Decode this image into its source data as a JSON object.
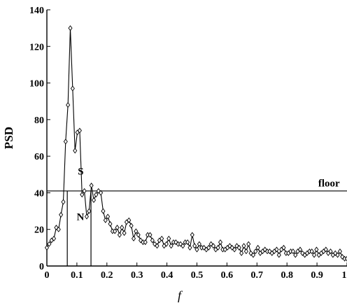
{
  "chart_data": {
    "type": "line",
    "xlabel": "f",
    "ylabel": "PSD",
    "xlim": [
      0,
      1
    ],
    "ylim": [
      0,
      140
    ],
    "xticks": [
      0,
      0.1,
      0.2,
      0.3,
      0.4,
      0.5,
      0.6,
      0.7,
      0.8,
      0.9,
      1
    ],
    "xtick_labels": [
      "0",
      "0.1",
      "0.2",
      "0.3",
      "0.4",
      "0.5",
      "0.6",
      "0.7",
      "0.8",
      "0.9",
      "1"
    ],
    "yticks": [
      0,
      20,
      40,
      60,
      80,
      100,
      120,
      140
    ],
    "ytick_labels": [
      "0",
      "20",
      "40",
      "60",
      "80",
      "100",
      "120",
      "140"
    ],
    "marker": "diamond",
    "grid": false,
    "floor_value": 41,
    "vertical_lines": [
      0.068,
      0.147
    ],
    "annotations": [
      {
        "text": "S",
        "x": 0.113,
        "y": 50
      },
      {
        "text": "N",
        "x": 0.112,
        "y": 25
      },
      {
        "text": "floor",
        "x": 0.94,
        "y": 43.5
      }
    ],
    "series": [
      {
        "x": [
          0.0,
          0.0078,
          0.0156,
          0.0234,
          0.0313,
          0.0391,
          0.0469,
          0.0547,
          0.0625,
          0.0703,
          0.0781,
          0.0859,
          0.0938,
          0.1016,
          0.1094,
          0.1172,
          0.125,
          0.1328,
          0.1406,
          0.1484,
          0.1563,
          0.1641,
          0.1719,
          0.1797,
          0.1875,
          0.1953,
          0.2031,
          0.2109,
          0.2188,
          0.2266,
          0.2344,
          0.2422,
          0.25,
          0.2578,
          0.2656,
          0.2734,
          0.2813,
          0.2891,
          0.2969,
          0.3047,
          0.3125,
          0.3203,
          0.3281,
          0.3359,
          0.3438,
          0.3516,
          0.3594,
          0.3672,
          0.375,
          0.3828,
          0.3906,
          0.3984,
          0.4063,
          0.4141,
          0.4219,
          0.4297,
          0.4375,
          0.4453,
          0.4531,
          0.4609,
          0.4688,
          0.4766,
          0.4844,
          0.4922,
          0.5,
          0.5078,
          0.5156,
          0.5234,
          0.5313,
          0.5391,
          0.5469,
          0.5547,
          0.5625,
          0.5703,
          0.5781,
          0.5859,
          0.5938,
          0.6016,
          0.6094,
          0.6172,
          0.625,
          0.6328,
          0.6406,
          0.6484,
          0.6563,
          0.6641,
          0.6719,
          0.6797,
          0.6875,
          0.6953,
          0.7031,
          0.7109,
          0.7188,
          0.7266,
          0.7344,
          0.7422,
          0.75,
          0.7578,
          0.7656,
          0.7734,
          0.7813,
          0.7891,
          0.7969,
          0.8047,
          0.8125,
          0.8203,
          0.8281,
          0.8359,
          0.8438,
          0.8516,
          0.8594,
          0.8672,
          0.875,
          0.8828,
          0.8906,
          0.8984,
          0.9063,
          0.9141,
          0.9219,
          0.9297,
          0.9375,
          0.9453,
          0.9531,
          0.9609,
          0.9688,
          0.9766,
          0.9844,
          0.9922,
          1.0
        ],
        "values": [
          10,
          12,
          14,
          15,
          21,
          20,
          28,
          35,
          68,
          88,
          130,
          97,
          63,
          73,
          74,
          39,
          41,
          27,
          30,
          44,
          36,
          39,
          41,
          40,
          30,
          25,
          27,
          23,
          19,
          19,
          21,
          17,
          21,
          18,
          24,
          25,
          22,
          15,
          19,
          17,
          14,
          13,
          13,
          17,
          17,
          14,
          12,
          11,
          14,
          15,
          11,
          12,
          15,
          11,
          13,
          13,
          12,
          12,
          11,
          13,
          13,
          10,
          17,
          11,
          9,
          12,
          10,
          10,
          9,
          10,
          12,
          11,
          9,
          10,
          13,
          9,
          9,
          10,
          11,
          10,
          9,
          11,
          10,
          7,
          11,
          8,
          12,
          7,
          6,
          8,
          10,
          7,
          8,
          9,
          8,
          8,
          7,
          8,
          9,
          6,
          9,
          10,
          7,
          7,
          8,
          8,
          6,
          8,
          9,
          7,
          6,
          7,
          8,
          8,
          6,
          9,
          6,
          7,
          8,
          9,
          7,
          8,
          6,
          7,
          6,
          8,
          5,
          4,
          4
        ]
      }
    ]
  }
}
